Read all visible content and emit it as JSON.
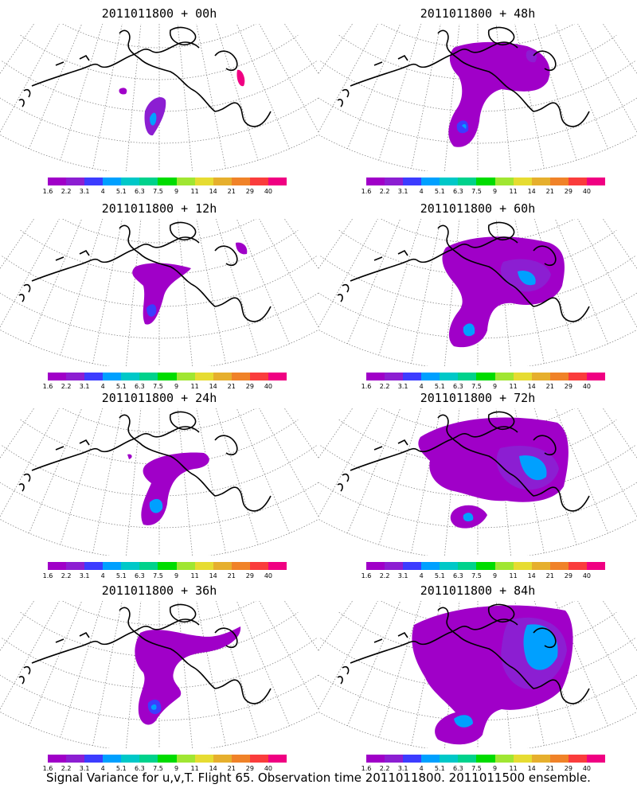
{
  "panels": [
    {
      "title": "2011011800 + 00h",
      "lead": 0
    },
    {
      "title": "2011011800 + 48h",
      "lead": 48
    },
    {
      "title": "2011011800 + 12h",
      "lead": 12
    },
    {
      "title": "2011011800 + 60h",
      "lead": 60
    },
    {
      "title": "2011011800 + 24h",
      "lead": 24
    },
    {
      "title": "2011011800 + 72h",
      "lead": 72
    },
    {
      "title": "2011011800 + 36h",
      "lead": 36
    },
    {
      "title": "2011011800 + 84h",
      "lead": 84
    }
  ],
  "colorbar": {
    "colors": [
      "#a000c8",
      "#8c1ed2",
      "#3c3cff",
      "#00a0ff",
      "#00c8c8",
      "#00d28c",
      "#00dc00",
      "#a0e632",
      "#e6dc32",
      "#e6af2d",
      "#f08228",
      "#fa3c3c",
      "#f00082"
    ],
    "labels": [
      "1.6",
      "2.2",
      "3.1",
      "4",
      "5.1",
      "6.3",
      "7.5",
      "9",
      "11",
      "14",
      "21",
      "29",
      "40"
    ]
  },
  "caption": "Signal Variance for u,v,T. Flight 65. Observation time 2011011800. 2011011500 ensemble."
}
